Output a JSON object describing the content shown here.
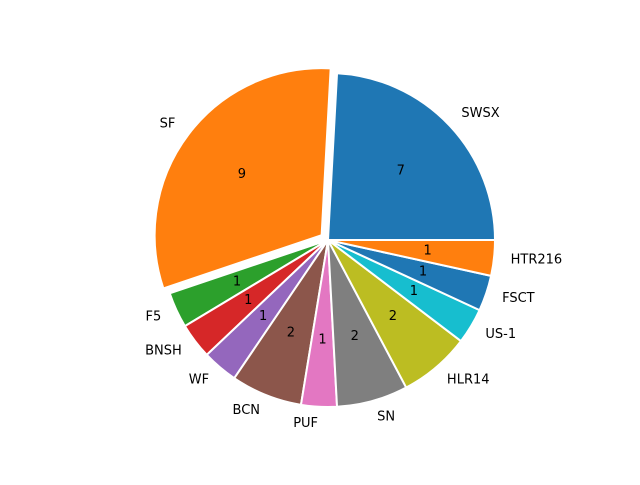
{
  "chart_data": {
    "type": "pie",
    "title": "",
    "start_angle_deg": 0,
    "direction": "counterclockwise",
    "slices": [
      {
        "label": "SWSX",
        "value": 7,
        "color": "#1f77b4",
        "explode": false
      },
      {
        "label": "SF",
        "value": 9,
        "color": "#ff7f0e",
        "explode": true
      },
      {
        "label": "F5",
        "value": 1,
        "color": "#2ca02c",
        "explode": false
      },
      {
        "label": "BNSH",
        "value": 1,
        "color": "#d62728",
        "explode": false
      },
      {
        "label": "WF",
        "value": 1,
        "color": "#9467bd",
        "explode": false
      },
      {
        "label": "BCN",
        "value": 2,
        "color": "#8c564b",
        "explode": false
      },
      {
        "label": "PUF",
        "value": 1,
        "color": "#e377c2",
        "explode": false
      },
      {
        "label": "SN",
        "value": 2,
        "color": "#7f7f7f",
        "explode": false
      },
      {
        "label": "HLR14",
        "value": 2,
        "color": "#bcbd22",
        "explode": false
      },
      {
        "label": "US-1",
        "value": 1,
        "color": "#17becf",
        "explode": false
      },
      {
        "label": "FSCT",
        "value": 1,
        "color": "#1f77b4",
        "explode": false
      },
      {
        "label": "HTR216",
        "value": 1,
        "color": "#ff7f0e",
        "explode": false
      }
    ],
    "wedge_edge_color": "#ffffff"
  }
}
